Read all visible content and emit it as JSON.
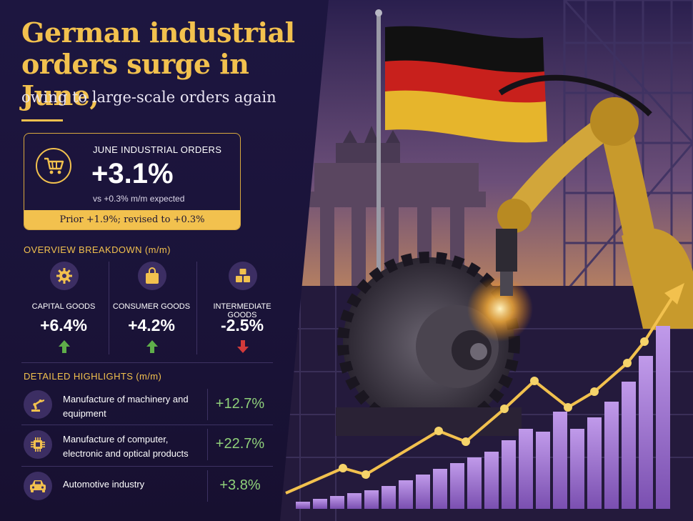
{
  "headline": {
    "title": "German industrial orders surge in June,",
    "subtitle": "owing to large-scale orders again"
  },
  "june_orders": {
    "label": "JUNE INDUSTRIAL ORDERS",
    "value": "+3.1%",
    "expected": "vs +0.3% m/m expected",
    "prior": "Prior +1.9%; revised to +0.3%",
    "icon": "shopping-cart-icon"
  },
  "overview": {
    "heading": "OVERVIEW BREAKDOWN (m/m)",
    "items": [
      {
        "label": "CAPITAL GOODS",
        "value": "+6.4%",
        "direction": "up",
        "icon": "gear-icon"
      },
      {
        "label": "CONSUMER GOODS",
        "value": "+4.2%",
        "direction": "up",
        "icon": "shopping-bag-icon"
      },
      {
        "label": "INTERMEDIATE GOODS",
        "value": "-2.5%",
        "direction": "down",
        "icon": "boxes-icon"
      }
    ]
  },
  "highlights": {
    "heading": "DETAILED HIGHLIGHTS (m/m)",
    "items": [
      {
        "label": "Manufacture of machinery and equipment",
        "value": "+12.7%",
        "icon": "robot-arm-icon"
      },
      {
        "label": "Manufacture of computer, electronic and optical products",
        "value": "+22.7%",
        "icon": "microchip-icon"
      },
      {
        "label": "Automotive industry",
        "value": "+3.8%",
        "icon": "car-icon"
      }
    ]
  },
  "colors": {
    "gold": "#f2c14e",
    "positive": "#8fd17a",
    "up_arrow": "#5fae4a",
    "down_arrow": "#d23a3a",
    "flag_black": "#111111",
    "flag_red": "#c8201c",
    "flag_gold": "#e6b52c",
    "bar_purple": "#a57ad6"
  }
}
